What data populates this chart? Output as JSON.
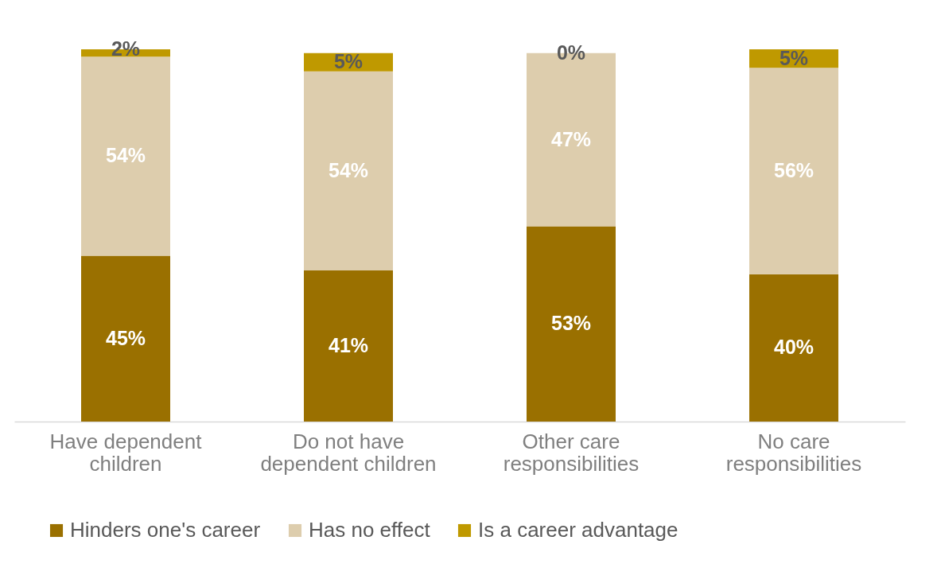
{
  "chart_data": {
    "type": "bar",
    "stacked": true,
    "legend": "bottom",
    "categories": [
      "Have dependent children",
      "Do not have dependent children",
      "Other care responsibilities",
      "No care responsibilities"
    ],
    "series": [
      {
        "name": "Hinders one's career",
        "color": "#9a7000",
        "values": [
          45,
          41,
          53,
          40
        ],
        "value_labels": [
          "45%",
          "41%",
          "53%",
          "40%"
        ]
      },
      {
        "name": "Has no effect",
        "color": "#ddcdad",
        "values": [
          54,
          54,
          47,
          56
        ],
        "value_labels": [
          "54%",
          "54%",
          "47%",
          "56%"
        ]
      },
      {
        "name": "Is a career advantage",
        "color": "#bf9900",
        "values": [
          2,
          5,
          0,
          5
        ],
        "value_labels": [
          "2%",
          "5%",
          "0%",
          "5%"
        ]
      }
    ]
  }
}
